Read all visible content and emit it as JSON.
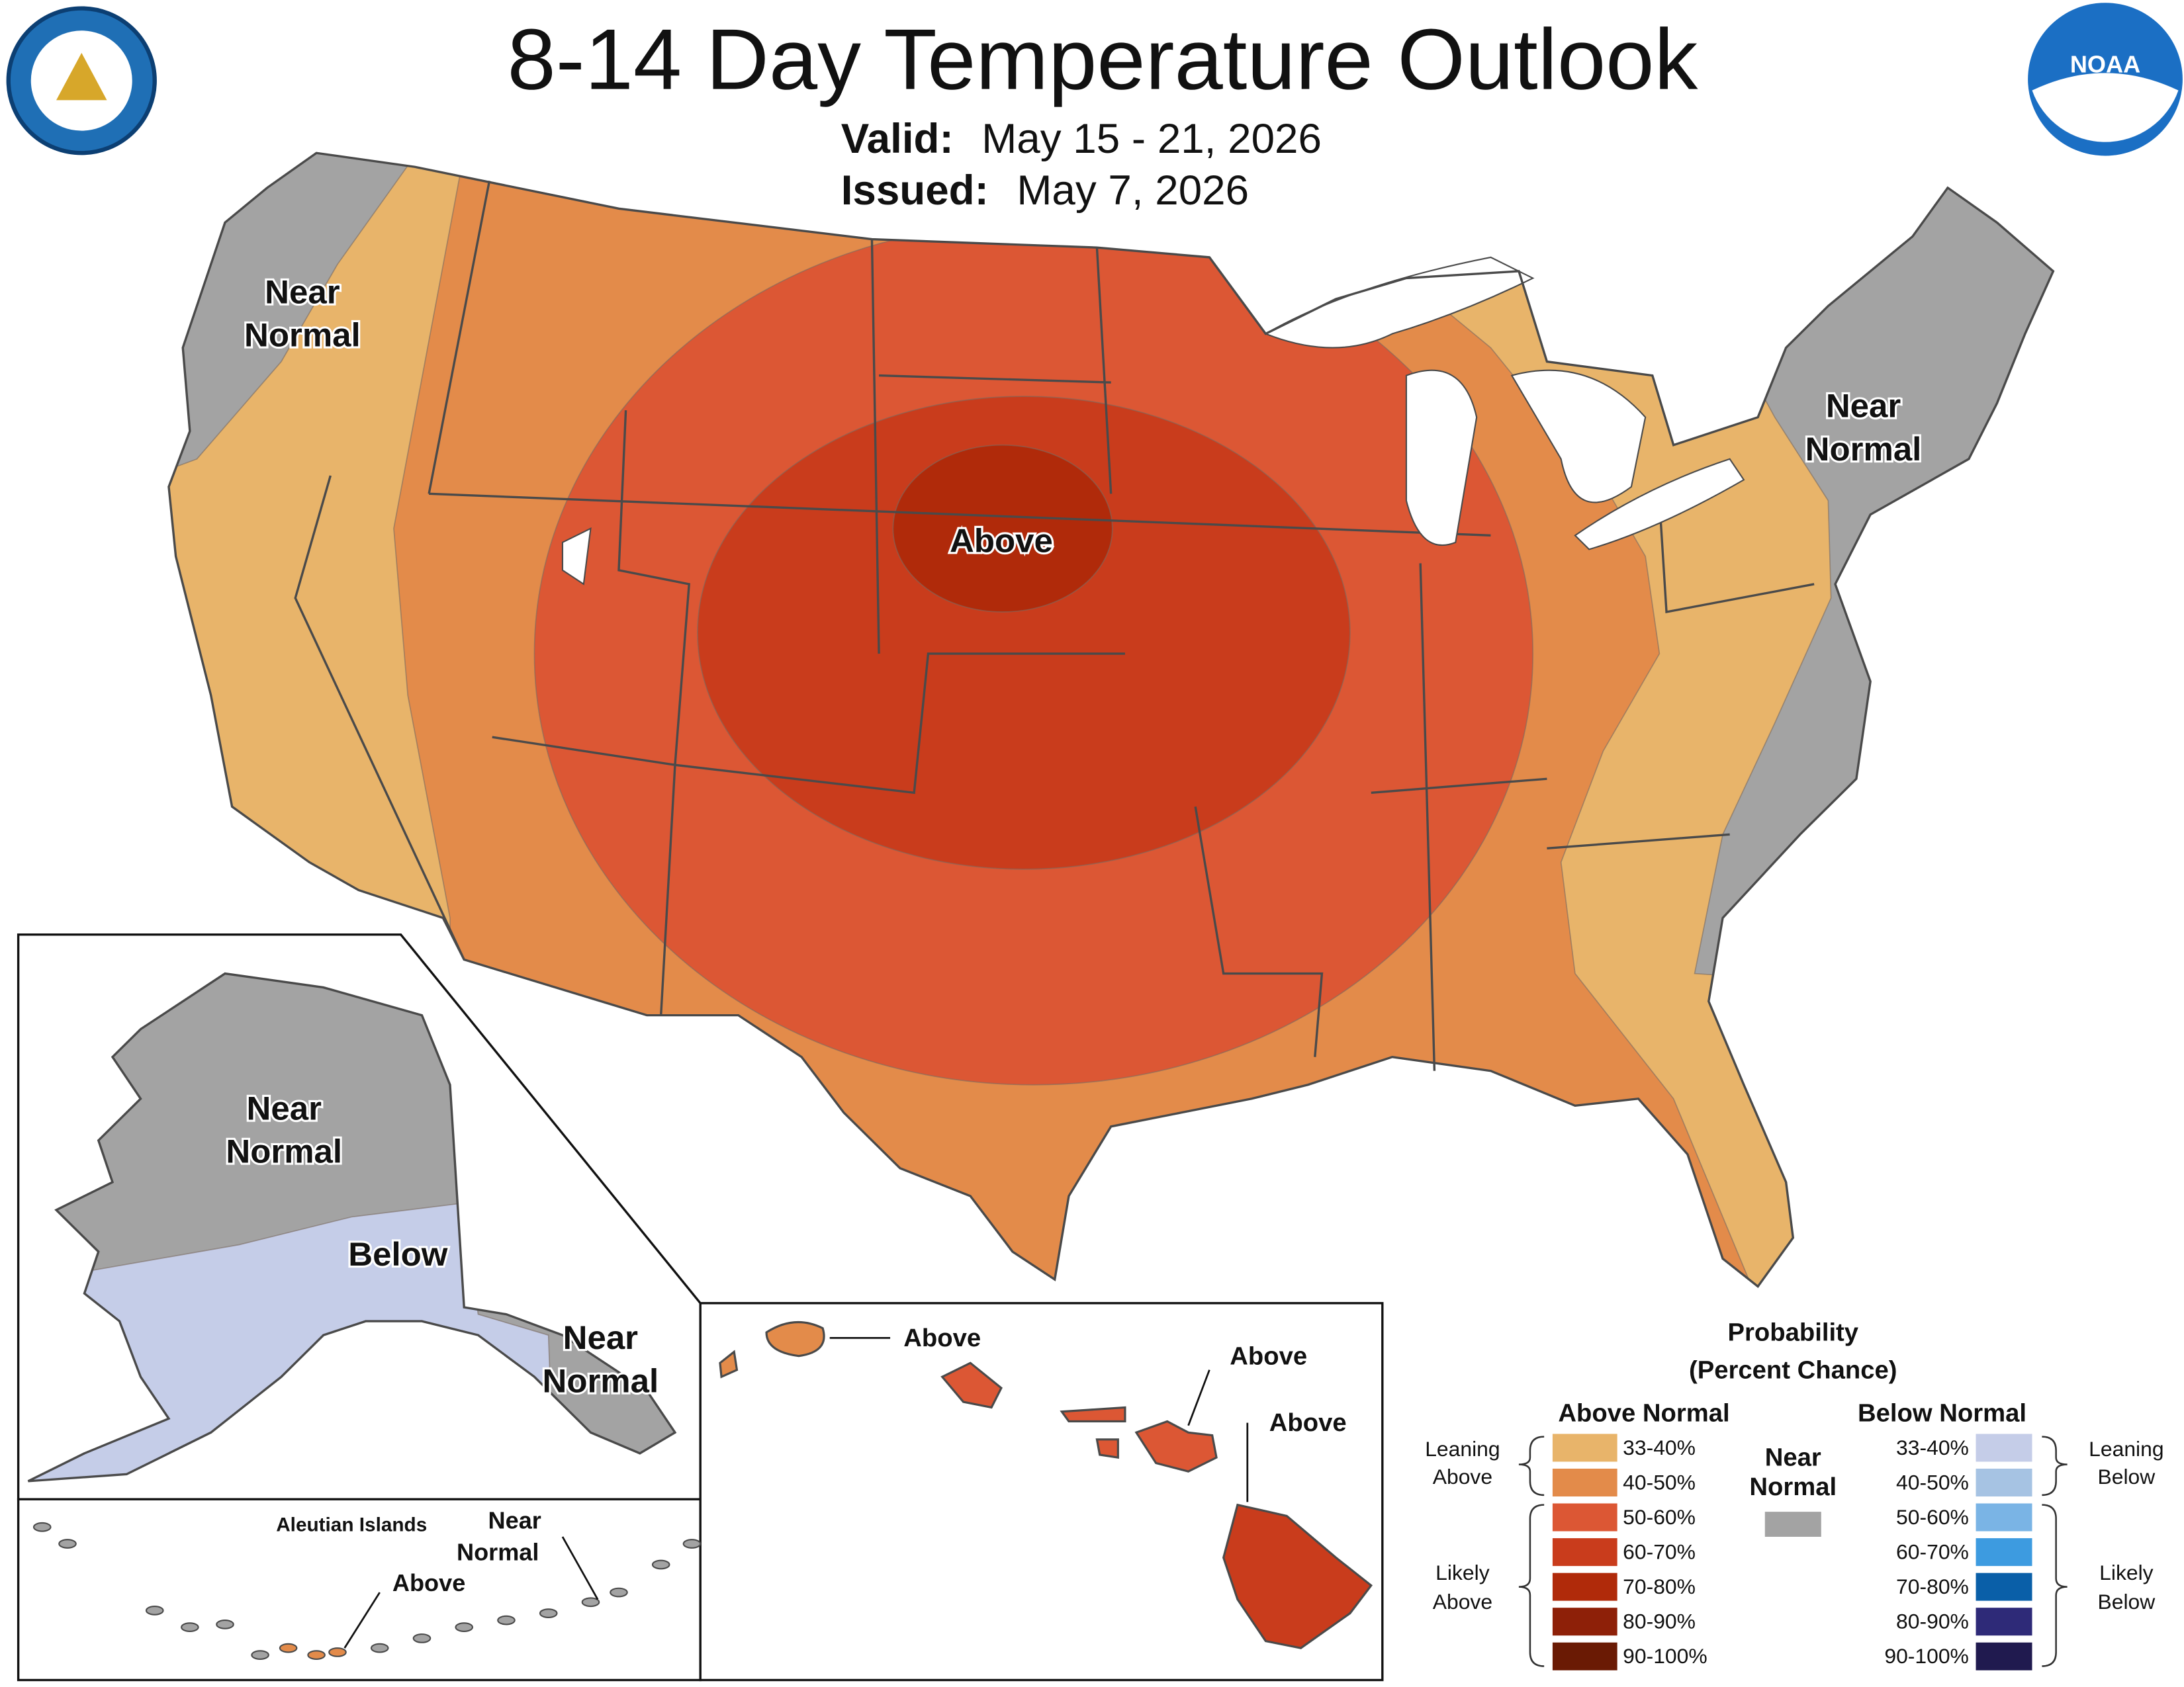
{
  "header": {
    "title": "8-14 Day Temperature Outlook",
    "valid_label": "Valid:",
    "valid": "May 15 - 21, 2026",
    "issued_label": "Issued:",
    "issued": "May 7, 2026",
    "noaa_logo": "NOAA"
  },
  "conus": {
    "west": [
      "Near",
      "Normal"
    ],
    "east": [
      "Near",
      "Normal"
    ],
    "center": [
      "Above"
    ]
  },
  "alaska": {
    "north": [
      "Near",
      "Normal"
    ],
    "south": [
      "Below"
    ],
    "panhandle": [
      "Near",
      "Normal"
    ]
  },
  "aleutians": {
    "title": "Aleutian Islands",
    "east": [
      "Near",
      "Normal"
    ],
    "west": [
      "Above"
    ]
  },
  "hawaii": {
    "kauai": [
      "Above"
    ],
    "maui": [
      "Above"
    ],
    "big_island": [
      "Above"
    ]
  },
  "legend": {
    "title": [
      "Probability",
      "(Percent Chance)"
    ],
    "above_title": "Above Normal",
    "below_title": "Below Normal",
    "near": [
      "Near",
      "Normal"
    ],
    "near_color": "#a3a3a3",
    "leaning_above": [
      "Leaning",
      "Above"
    ],
    "likely_above": [
      "Likely",
      "Above"
    ],
    "leaning_below": [
      "Leaning",
      "Below"
    ],
    "likely_below": [
      "Likely",
      "Below"
    ],
    "above": [
      {
        "label": "33-40%",
        "color": "#e8b46a"
      },
      {
        "label": "40-50%",
        "color": "#e38b4a"
      },
      {
        "label": "50-60%",
        "color": "#dc5734"
      },
      {
        "label": "60-70%",
        "color": "#c93c1c"
      },
      {
        "label": "70-80%",
        "color": "#b02a0a"
      },
      {
        "label": "80-90%",
        "color": "#8e2008"
      },
      {
        "label": "90-100%",
        "color": "#6a1a04"
      }
    ],
    "below": [
      {
        "label": "33-40%",
        "color": "#c5cde8"
      },
      {
        "label": "40-50%",
        "color": "#a6c3e3"
      },
      {
        "label": "50-60%",
        "color": "#7ab4e5"
      },
      {
        "label": "60-70%",
        "color": "#3d9be0"
      },
      {
        "label": "70-80%",
        "color": "#0a5fa8"
      },
      {
        "label": "80-90%",
        "color": "#2e2a78"
      },
      {
        "label": "90-100%",
        "color": "#201a4f"
      }
    ]
  }
}
